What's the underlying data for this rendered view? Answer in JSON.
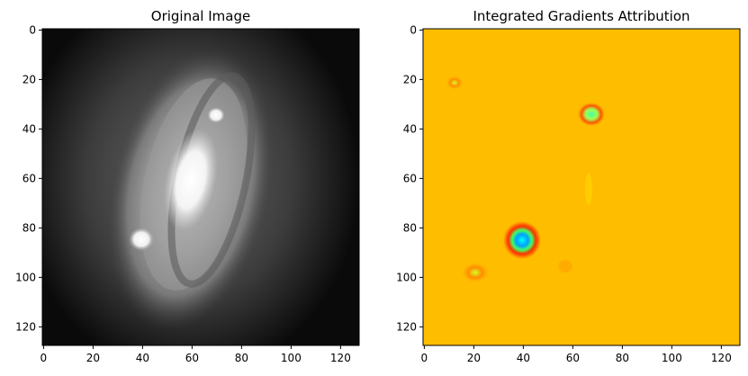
{
  "chart_data": [
    {
      "type": "heatmap",
      "title": "Original Image",
      "colormap": "gray",
      "xlim": [
        0,
        128
      ],
      "ylim": [
        128,
        0
      ],
      "xticks": [
        0,
        20,
        40,
        60,
        80,
        100,
        120
      ],
      "yticks": [
        0,
        20,
        40,
        60,
        80,
        100,
        120
      ],
      "grid": false,
      "features": [
        {
          "name": "galaxy core",
          "center": [
            60,
            62
          ],
          "radius_x": 9,
          "radius_y": 18,
          "intensity": 1.0
        },
        {
          "name": "galaxy disk",
          "center": [
            60,
            65
          ],
          "radius_x": 32,
          "radius_y": 60,
          "intensity": 0.62
        },
        {
          "name": "bright star",
          "center": [
            40,
            85
          ],
          "radius": 4,
          "intensity": 1.0
        },
        {
          "name": "faint star",
          "center": [
            70,
            35
          ],
          "radius": 3,
          "intensity": 0.9
        }
      ]
    },
    {
      "type": "heatmap",
      "title": "Integrated Gradients Attribution",
      "colormap": "jet",
      "xlim": [
        0,
        128
      ],
      "ylim": [
        128,
        0
      ],
      "xticks": [
        0,
        20,
        40,
        60,
        80,
        100,
        120
      ],
      "yticks": [
        0,
        20,
        40,
        60,
        80,
        100,
        120
      ],
      "grid": false,
      "background_level": 0.72,
      "features": [
        {
          "name": "strong attribution",
          "center": [
            40,
            85
          ],
          "radius": 6
        },
        {
          "name": "attribution spot",
          "center": [
            68,
            35
          ],
          "radius": 5
        },
        {
          "name": "weak spot",
          "center": [
            20,
            101
          ],
          "radius": 4
        },
        {
          "name": "weak spot",
          "center": [
            13,
            22
          ],
          "radius": 3
        }
      ]
    }
  ],
  "colors": {
    "gray_background": "#0a0a0a",
    "attribution_background": "#ffbb00"
  }
}
